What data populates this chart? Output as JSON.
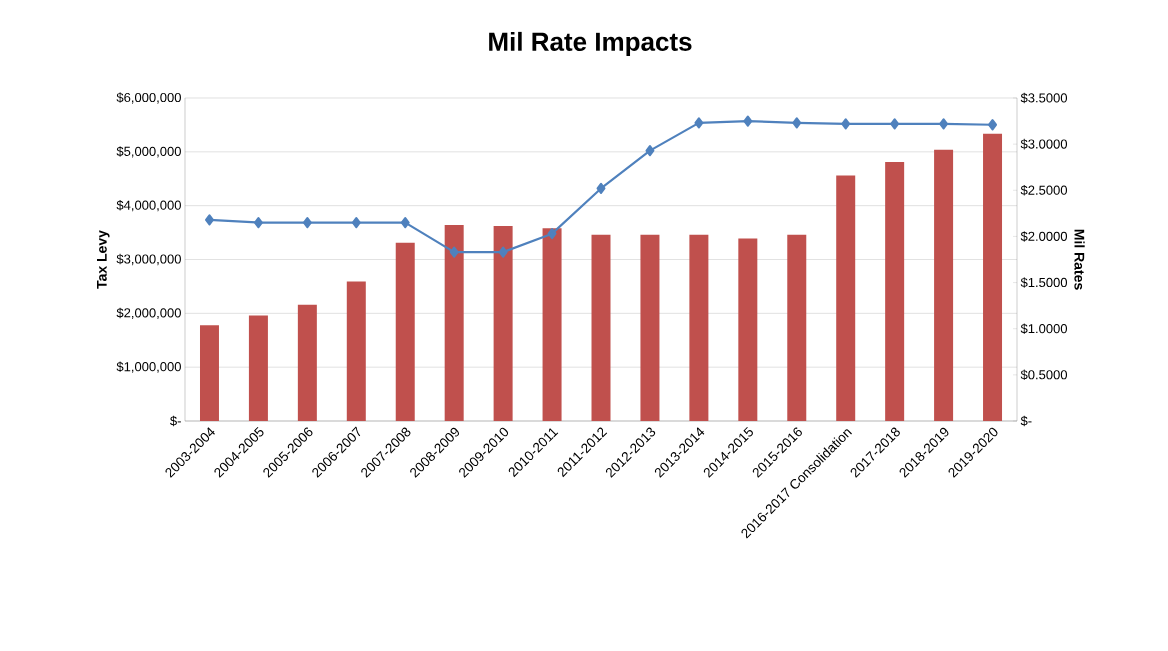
{
  "chart_data": {
    "type": "bar",
    "title": "Mil Rate Impacts",
    "ylabel": "Tax Levy",
    "y2label": "Mil Rates",
    "categories": [
      "2003-2004",
      "2004-2005",
      "2005-2006",
      "2006-2007",
      "2007-2008",
      "2008-2009",
      "2009-2010",
      "2010-2011",
      "2011-2012",
      "2012-2013",
      "2013-2014",
      "2014-2015",
      "2015-2016",
      "2016-2017 Consolidation",
      "2017-2018",
      "2018-2019",
      "2019-2020"
    ],
    "series": [
      {
        "color": "#c0504d",
        "values": [
          1780000,
          1960000,
          2160000,
          2590000,
          3310000,
          3640000,
          3620000,
          3580000,
          3460000,
          3460000,
          3460000,
          3390000,
          3460000,
          4560000,
          4810000,
          5040000,
          5340000
        ]
      },
      {
        "type": "line",
        "axis": "y2",
        "color": "#4f81bd",
        "marker": "diamond",
        "values": [
          2.18,
          2.15,
          2.15,
          2.15,
          2.15,
          1.83,
          1.83,
          2.03,
          2.52,
          2.93,
          3.23,
          3.25,
          3.23,
          3.22,
          3.22,
          3.22,
          3.21
        ]
      }
    ],
    "ylim": [
      0,
      6000000
    ],
    "yticks": [
      {
        "value": 0,
        "label": "$-"
      },
      {
        "value": 1000000,
        "label": "$1,000,000"
      },
      {
        "value": 2000000,
        "label": "$2,000,000"
      },
      {
        "value": 3000000,
        "label": "$3,000,000"
      },
      {
        "value": 4000000,
        "label": "$4,000,000"
      },
      {
        "value": 5000000,
        "label": "$5,000,000"
      },
      {
        "value": 6000000,
        "label": "$6,000,000"
      }
    ],
    "y2lim": [
      0,
      3.5
    ],
    "y2ticks": [
      {
        "value": 0,
        "label": "$-"
      },
      {
        "value": 0.5,
        "label": "$0.5000"
      },
      {
        "value": 1,
        "label": "$1.0000"
      },
      {
        "value": 1.5,
        "label": "$1.5000"
      },
      {
        "value": 2,
        "label": "$2.0000"
      },
      {
        "value": 2.5,
        "label": "$2.5000"
      },
      {
        "value": 3,
        "label": "$3.0000"
      },
      {
        "value": 3.5,
        "label": "$3.5000"
      }
    ],
    "grid": "y"
  }
}
